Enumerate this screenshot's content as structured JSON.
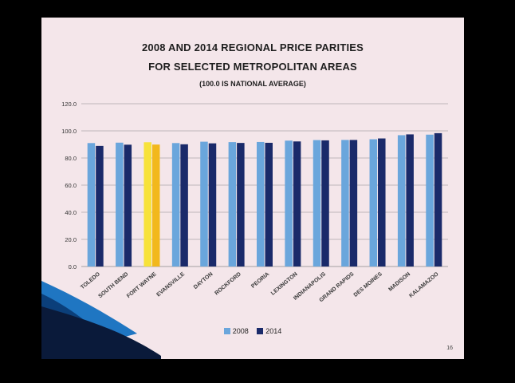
{
  "slide": {
    "title_line1": "2008 AND 2014 REGIONAL PRICE PARITIES",
    "title_line2": "FOR SELECTED METROPOLITAN AREAS",
    "subtitle": "(100.0 IS NATIONAL AVERAGE)",
    "page_number": "16"
  },
  "colors": {
    "series_2008": "#6aa6dc",
    "series_2014": "#1a2a6a",
    "highlight_2008": "#f7e23a",
    "highlight_2014": "#f2b81c",
    "grid": "#888888",
    "background": "#f4e6ea"
  },
  "chart_data": {
    "type": "bar",
    "categories": [
      "TOLEDO",
      "SOUTH BEND",
      "FORT WAYNE",
      "EVANSVILLE",
      "DAYTON",
      "ROCKFORD",
      "PEORIA",
      "LEXINGTON",
      "INDIANAPOLIS",
      "GRAND RAPIDS",
      "DES MOINES",
      "MADISON",
      "KALAMAZOO"
    ],
    "series": [
      {
        "name": "2008",
        "values": [
          91.0,
          91.3,
          91.6,
          91.0,
          92.0,
          91.7,
          91.8,
          92.8,
          93.2,
          93.3,
          93.8,
          96.8,
          97.2
        ]
      },
      {
        "name": "2014",
        "values": [
          88.9,
          89.8,
          89.9,
          90.1,
          90.8,
          91.1,
          91.2,
          92.2,
          93.0,
          93.3,
          94.4,
          97.4,
          98.3
        ]
      }
    ],
    "highlight_category": "FORT WAYNE",
    "yticks": [
      "0.0",
      "20.0",
      "40.0",
      "60.0",
      "80.0",
      "100.0",
      "120.0"
    ],
    "ylim": [
      0,
      120
    ],
    "legend_position": "bottom",
    "grid": "horizontal"
  }
}
